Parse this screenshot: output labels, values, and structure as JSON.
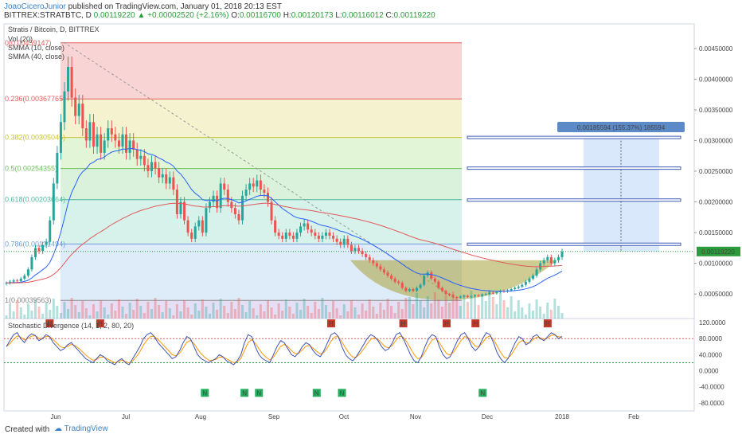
{
  "header": {
    "author": "JoaoCiceroJunior",
    "published_text": "published on TradingView.com, January 01, 2018 20:13 EST",
    "symbol": "BITTREX:STRATBTC, D",
    "last": "0.00119220",
    "change_arrow": "▲",
    "change": "+0.00002520 (+2.16%)",
    "o_label": "O:",
    "o": "0.00116700",
    "h_label": "H:",
    "h": "0.00120173",
    "l_label": "L:",
    "l": "0.00116012",
    "c_label": "C:",
    "c": "0.00119220"
  },
  "footer": {
    "created_with": "Created with",
    "brand": "TradingView"
  },
  "colors": {
    "up": "#26a69a",
    "down": "#ef5350",
    "smma10": "#2962ff",
    "smma40": "#e05a5a",
    "stoch_k": "#3f51b5",
    "stoch_d": "#ff9800",
    "accent": "#5b8ac7"
  },
  "chart_data": [
    {
      "type": "candlestick",
      "title": "Stratis / Bitcoin, D, BITTREX",
      "legend": [
        "Vol (20)",
        "SMMA (10, close)",
        "SMMA (40, close)"
      ],
      "x_ticks": [
        "Jun",
        "Jul",
        "Aug",
        "Sep",
        "Oct",
        "Nov",
        "Dec",
        "2018",
        "Feb"
      ],
      "y_ticks": [
        "0.00450000",
        "0.00400000",
        "0.00350000",
        "0.00300000",
        "0.00250000",
        "0.00200000",
        "0.00150000",
        "0.00100000",
        "0.00050000"
      ],
      "ylim": [
        0.0001,
        0.0049
      ],
      "close": [
        0.00068,
        0.0007,
        0.00072,
        0.00071,
        0.00075,
        0.0008,
        0.0009,
        0.0011,
        0.00125,
        0.0012,
        0.0013,
        0.00135,
        0.0017,
        0.0023,
        0.0028,
        0.0033,
        0.0038,
        0.0042,
        0.0037,
        0.0034,
        0.0036,
        0.0032,
        0.003,
        0.0033,
        0.0029,
        0.0031,
        0.0028,
        0.003,
        0.0032,
        0.0031,
        0.003,
        0.0029,
        0.0031,
        0.0028,
        0.003,
        0.00285,
        0.0027,
        0.00275,
        0.0026,
        0.0025,
        0.00265,
        0.00255,
        0.0024,
        0.00245,
        0.0023,
        0.0024,
        0.0022,
        0.0018,
        0.002,
        0.0017,
        0.0015,
        0.0014,
        0.0016,
        0.0017,
        0.0015,
        0.0019,
        0.002,
        0.0021,
        0.0019,
        0.0023,
        0.0022,
        0.002,
        0.0019,
        0.0018,
        0.0017,
        0.0021,
        0.0022,
        0.0023,
        0.00225,
        0.00235,
        0.0022,
        0.00215,
        0.002,
        0.0017,
        0.0015,
        0.00145,
        0.0014,
        0.0015,
        0.00145,
        0.0014,
        0.0015,
        0.0016,
        0.00165,
        0.00155,
        0.0015,
        0.00145,
        0.0014,
        0.00145,
        0.0015,
        0.00145,
        0.0014,
        0.00135,
        0.0013,
        0.0014,
        0.0013,
        0.0012,
        0.00125,
        0.0012,
        0.00115,
        0.0011,
        0.00105,
        0.001,
        0.00095,
        0.0009,
        0.00085,
        0.0008,
        0.00075,
        0.0007,
        0.00068,
        0.0006,
        0.00055,
        0.00058,
        0.00055,
        0.0006,
        0.00065,
        0.0008,
        0.00085,
        0.00075,
        0.0007,
        0.0006,
        0.00055,
        0.0005,
        0.00048,
        0.00045,
        0.00044,
        0.00046,
        0.00047,
        0.00045,
        0.00046,
        0.00048,
        0.00047,
        0.00049,
        0.0005,
        0.00052,
        0.00051,
        0.00053,
        0.00055,
        0.00054,
        0.00056,
        0.00058,
        0.0006,
        0.00062,
        0.00065,
        0.0007,
        0.00075,
        0.0008,
        0.0009,
        0.001,
        0.00105,
        0.0011,
        0.001,
        0.00105,
        0.0011,
        0.00119
      ],
      "fib_levels": [
        {
          "label": "0(0.00459147)",
          "value": 0.00459147
        },
        {
          "label": "0.236(0.00367765)",
          "value": 0.00367765
        },
        {
          "label": "0.382(0.00305046)",
          "value": 0.00305046
        },
        {
          "label": "0.5(0.00254355)",
          "value": 0.00254355
        },
        {
          "label": "0.618(0.00203664)",
          "value": 0.00203664
        },
        {
          "label": "0.786(0.00131494)",
          "value": 0.00131494
        },
        {
          "label": "1(0.00039563)",
          "value": 0.00039563
        }
      ],
      "target_label": "0.00185594 (155.37%) 185594",
      "target_levels": [
        0.00305,
        0.00255,
        0.00203,
        0.00131
      ],
      "last_price_label": "0.00119220",
      "last_price": 0.0011922
    },
    {
      "type": "line",
      "title": "Stochastic Divergence (14, 1, 2, 80, 20)",
      "y_ticks": [
        "120.0000",
        "80.0000",
        "40.0000",
        "0.0000",
        "-40.0000",
        "-80.0000"
      ],
      "ylim": [
        -100,
        130
      ],
      "overbought": 80,
      "oversold": 20,
      "k": [
        60,
        75,
        90,
        95,
        80,
        70,
        85,
        92,
        88,
        75,
        80,
        90,
        85,
        70,
        60,
        50,
        55,
        65,
        70,
        60,
        50,
        40,
        30,
        25,
        20,
        30,
        40,
        35,
        25,
        20,
        15,
        25,
        30,
        20,
        15,
        30,
        45,
        60,
        80,
        90,
        95,
        85,
        70,
        60,
        50,
        40,
        30,
        35,
        50,
        70,
        85,
        80,
        60,
        40,
        30,
        25,
        20,
        25,
        30,
        40,
        35,
        25,
        20,
        15,
        25,
        40,
        70,
        90,
        85,
        60,
        40,
        30,
        25,
        20,
        40,
        60,
        75,
        70,
        55,
        40,
        35,
        45,
        60,
        70,
        65,
        50,
        40,
        35,
        50,
        70,
        90,
        95,
        85,
        60,
        40,
        30,
        25,
        35,
        50,
        65,
        80,
        90,
        85,
        75,
        60,
        50,
        55,
        70,
        90,
        95,
        80,
        60,
        40,
        25,
        20,
        35,
        60,
        80,
        90,
        85,
        60,
        40,
        30,
        35,
        55,
        75,
        90,
        95,
        80,
        60,
        50,
        60,
        80,
        95,
        90,
        70,
        45,
        30,
        20,
        30,
        50,
        70,
        85,
        80,
        65,
        70,
        85,
        90,
        80,
        75,
        85,
        95,
        90,
        80,
        85
      ],
      "h_labels": [
        {
          "label": "H",
          "i": 12
        },
        {
          "label": "H",
          "i": 26
        },
        {
          "label": "H",
          "i": 90
        },
        {
          "label": "H",
          "i": 110
        },
        {
          "label": "H",
          "i": 122
        },
        {
          "label": "H",
          "i": 130
        },
        {
          "label": "H",
          "i": 150
        }
      ],
      "n_labels": [
        {
          "label": "N",
          "i": 55
        },
        {
          "label": "N",
          "i": 66
        },
        {
          "label": "N",
          "i": 70
        },
        {
          "label": "N",
          "i": 86
        },
        {
          "label": "N",
          "i": 93
        },
        {
          "label": "N",
          "i": 132
        }
      ],
      "b_labels": [
        {
          "label": "B",
          "i": 28
        },
        {
          "label": "B",
          "i": 34
        },
        {
          "label": "B",
          "i": 72
        },
        {
          "label": "B",
          "i": 100
        },
        {
          "label": "B",
          "i": 143
        }
      ]
    }
  ]
}
